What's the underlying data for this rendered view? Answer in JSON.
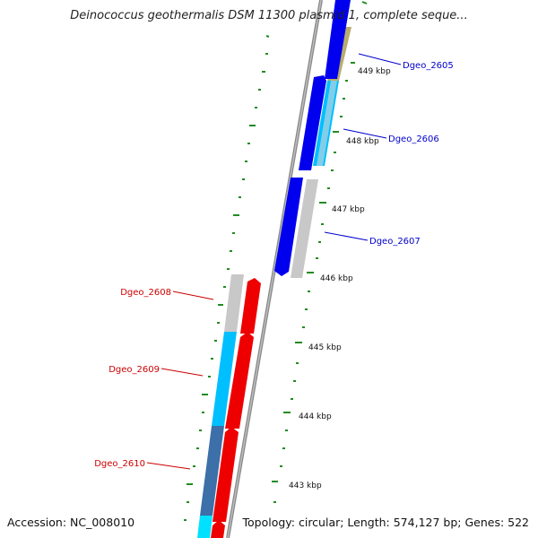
{
  "title": "Deinococcus geothermalis DSM 11300 plasmid 1, complete seque...",
  "accession": "Accession: NC_008010",
  "summary": "Topology: circular; Length: 574,127 bp; Genes: 522",
  "colors": {
    "forward_cds": "#0000ee",
    "reverse_cds": "#ee0000",
    "gc_high": "#00bfff",
    "gc_mid": "#c8c8c8",
    "gc_dark": "#3d6fa8",
    "gc_khaki": "#b8ad6e",
    "backbone": "#888888",
    "ticks": "#228b22",
    "forward_label": "#0000cc",
    "reverse_label": "#cc0000"
  },
  "kbp_ticks": [
    "449 kbp",
    "448 kbp",
    "447 kbp",
    "446 kbp",
    "445 kbp",
    "444 kbp",
    "443 kbp"
  ],
  "forward_labels": [
    "Dgeo_2605",
    "Dgeo_2606",
    "Dgeo_2607"
  ],
  "reverse_labels": [
    "Dgeo_2608",
    "Dgeo_2609",
    "Dgeo_2610"
  ]
}
